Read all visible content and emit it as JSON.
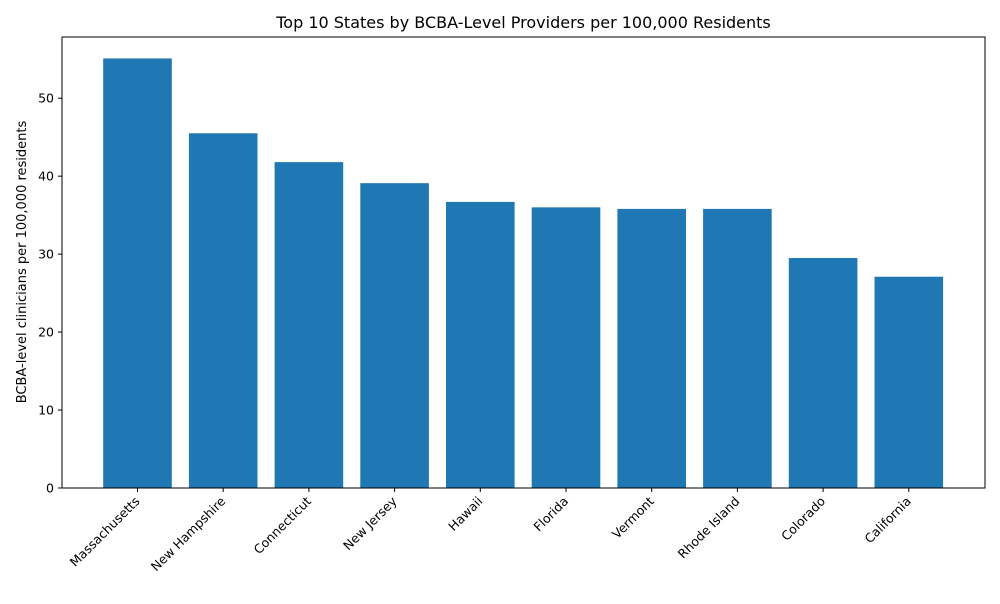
{
  "chart_data": {
    "type": "bar",
    "title": "Top 10 States by BCBA-Level Providers per 100,000 Residents",
    "xlabel": "",
    "ylabel": "BCBA-level clinicians per 100,000 residents",
    "categories": [
      "Massachusetts",
      "New Hampshire",
      "Connecticut",
      "New Jersey",
      "Hawaii",
      "Florida",
      "Vermont",
      "Rhode Island",
      "Colorado",
      "California"
    ],
    "values": [
      55.1,
      45.5,
      41.8,
      39.1,
      36.7,
      36.0,
      35.8,
      35.8,
      29.5,
      27.1
    ],
    "ylim": [
      0,
      57.85
    ],
    "yticks": [
      0,
      10,
      20,
      30,
      40,
      50
    ],
    "bar_color": "#1f77b4",
    "grid": false,
    "legend": "none"
  }
}
